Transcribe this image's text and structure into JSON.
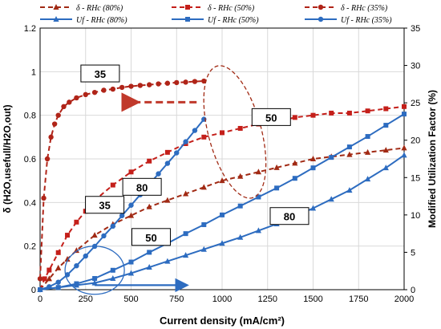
{
  "chart_data": {
    "type": "line",
    "xlabel": "Current density (mA/cm²)",
    "ylabel_left": "δ (H2O,usefull/H2O,out)",
    "ylabel_right": "Modified Utilization Factor (%)",
    "x_ticks": [
      0,
      250,
      500,
      750,
      1000,
      1250,
      1500,
      1750,
      2000
    ],
    "y_left_ticks": [
      0,
      0.2,
      0.4,
      0.6,
      0.8,
      1,
      1.2
    ],
    "y_right_ticks": [
      0,
      5,
      10,
      15,
      20,
      25,
      30,
      35
    ],
    "xlim": [
      0,
      2000
    ],
    "ylim_left": [
      0,
      1.2
    ],
    "ylim_right": [
      0,
      35
    ],
    "legend_position": "top",
    "grid": true,
    "series": [
      {
        "name": "δ - RHc (80%)",
        "axis": "left",
        "color": "#a12a14",
        "line": "dashed",
        "marker": "triangle",
        "x": [
          0,
          50,
          100,
          150,
          200,
          300,
          400,
          500,
          600,
          700,
          800,
          900,
          1000,
          1100,
          1200,
          1300,
          1400,
          1500,
          1600,
          1700,
          1800,
          1900,
          2000
        ],
        "y": [
          0.0,
          0.05,
          0.1,
          0.14,
          0.18,
          0.25,
          0.3,
          0.34,
          0.38,
          0.41,
          0.44,
          0.47,
          0.5,
          0.52,
          0.54,
          0.56,
          0.58,
          0.6,
          0.61,
          0.62,
          0.63,
          0.64,
          0.65
        ]
      },
      {
        "name": "δ - RHc (50%)",
        "axis": "left",
        "color": "#c41f1a",
        "line": "dashed",
        "marker": "square",
        "x": [
          0,
          25,
          50,
          100,
          150,
          200,
          250,
          300,
          400,
          500,
          600,
          700,
          800,
          900,
          1000,
          1100,
          1200,
          1300,
          1400,
          1500,
          1600,
          1700,
          1800,
          1900,
          2000
        ],
        "y": [
          0.0,
          0.05,
          0.09,
          0.17,
          0.25,
          0.31,
          0.36,
          0.41,
          0.48,
          0.54,
          0.59,
          0.63,
          0.67,
          0.7,
          0.72,
          0.74,
          0.76,
          0.77,
          0.79,
          0.8,
          0.81,
          0.81,
          0.82,
          0.83,
          0.84
        ]
      },
      {
        "name": "δ - RHc (35%)",
        "axis": "left",
        "color": "#b02418",
        "line": "dashed",
        "marker": "circle",
        "x": [
          0,
          20,
          40,
          60,
          80,
          100,
          130,
          160,
          200,
          250,
          300,
          350,
          400,
          450,
          500,
          550,
          600,
          650,
          700,
          750,
          800,
          850,
          900
        ],
        "y": [
          0.05,
          0.42,
          0.6,
          0.7,
          0.76,
          0.8,
          0.84,
          0.86,
          0.88,
          0.895,
          0.905,
          0.915,
          0.92,
          0.928,
          0.933,
          0.937,
          0.94,
          0.944,
          0.947,
          0.95,
          0.952,
          0.955,
          0.957
        ]
      },
      {
        "name": "Uf - RHc (80%)",
        "axis": "right",
        "color": "#2d6cc0",
        "line": "solid",
        "marker": "triangle",
        "x": [
          0,
          100,
          200,
          300,
          400,
          500,
          600,
          700,
          800,
          900,
          1000,
          1100,
          1200,
          1300,
          1400,
          1500,
          1600,
          1700,
          1800,
          1900,
          2000
        ],
        "y": [
          0.0,
          0.3,
          0.6,
          0.9,
          1.5,
          2.2,
          3.0,
          3.8,
          4.6,
          5.4,
          6.2,
          7.0,
          7.9,
          8.8,
          9.8,
          10.9,
          12.1,
          13.3,
          14.8,
          16.3,
          18.0
        ]
      },
      {
        "name": "Uf - RHc (50%)",
        "axis": "right",
        "color": "#2d6cc0",
        "line": "solid",
        "marker": "square",
        "x": [
          0,
          100,
          200,
          300,
          400,
          500,
          600,
          700,
          800,
          900,
          1000,
          1100,
          1200,
          1300,
          1400,
          1500,
          1600,
          1700,
          1800,
          1900,
          2000
        ],
        "y": [
          0.0,
          0.3,
          0.8,
          1.5,
          2.6,
          3.7,
          5.0,
          6.2,
          7.5,
          8.7,
          10.0,
          11.2,
          12.4,
          13.6,
          14.9,
          16.3,
          17.7,
          19.1,
          20.5,
          22.0,
          23.5
        ]
      },
      {
        "name": "Uf - RHc (35%)",
        "axis": "right",
        "color": "#2d6cc0",
        "line": "solid",
        "marker": "circle",
        "x": [
          0,
          50,
          100,
          150,
          200,
          250,
          300,
          350,
          400,
          450,
          500,
          550,
          600,
          650,
          700,
          750,
          800,
          850,
          900
        ],
        "y": [
          0.0,
          0.4,
          1.0,
          2.0,
          3.2,
          4.5,
          5.8,
          7.2,
          8.5,
          9.9,
          11.3,
          12.7,
          14.1,
          15.5,
          16.9,
          18.3,
          19.8,
          21.3,
          22.8
        ]
      }
    ],
    "annotations": [
      {
        "text": "35",
        "target": "δ - RHc (35%)"
      },
      {
        "text": "50",
        "target": "δ - RHc (50%)"
      },
      {
        "text": "80",
        "target": "δ - RHc (80%)"
      },
      {
        "text": "35",
        "target": "Uf - RHc (35%)"
      },
      {
        "text": "50",
        "target": "Uf - RHc (50%)"
      },
      {
        "text": "80",
        "target": "Uf - RHc (80%)"
      }
    ]
  }
}
